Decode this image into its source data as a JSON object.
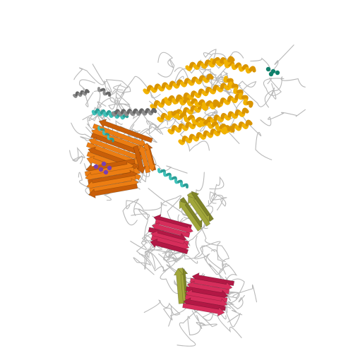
{
  "scene": {
    "background": "#ffffff",
    "colors": {
      "coil": "#b8b8b8",
      "helix_gold": "#f1b200",
      "helix_gold_dark": "#d99400",
      "helix_cyan": "#3ec1b8",
      "helix_gray": "#8c8c8c",
      "sheet_orange": "#ec7d12",
      "sheet_orange_dark": "#c85e08",
      "sheet_magenta": "#d62d5b",
      "sheet_magenta_dark": "#b21845",
      "sheet_olive": "#a1a63a",
      "ligand_purple": "#7a3fb0",
      "ligand_teal": "#10806b"
    }
  }
}
